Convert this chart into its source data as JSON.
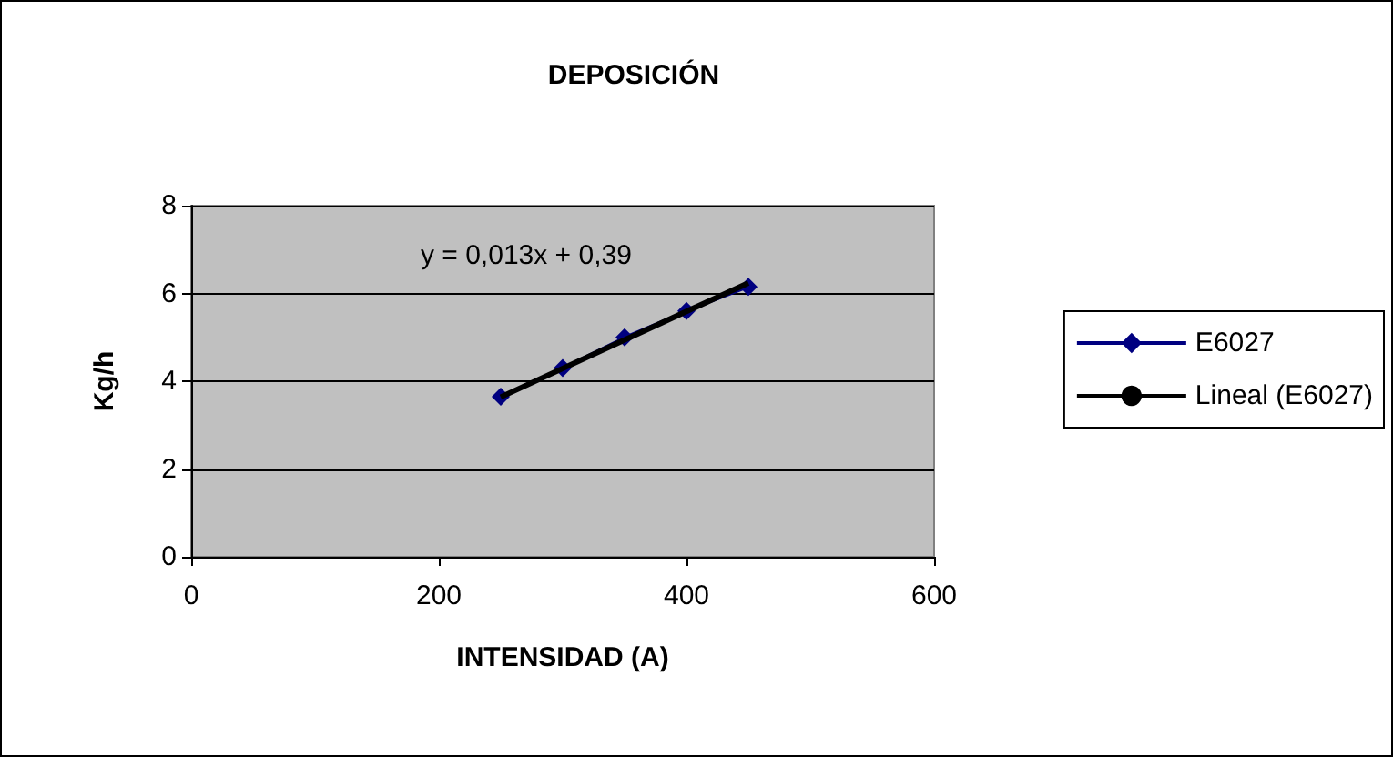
{
  "chart_data": {
    "type": "line",
    "title": "DEPOSICIÓN",
    "xlabel": "INTENSIDAD (A)",
    "ylabel": "Kg/h",
    "annotations": [
      "y = 0,013x + 0,39"
    ],
    "x": [
      250,
      300,
      350,
      400,
      450
    ],
    "series": [
      {
        "name": "E6027",
        "color": "#000080",
        "values": [
          3.65,
          4.3,
          5.0,
          5.6,
          6.15
        ],
        "marker": "diamond"
      },
      {
        "name": "Lineal (E6027)",
        "color": "#000000",
        "x": [
          250,
          450
        ],
        "values": [
          3.64,
          6.24
        ],
        "marker": "none"
      }
    ],
    "xlim": [
      0,
      600
    ],
    "xticks": [
      0,
      200,
      400,
      600
    ],
    "ylim": [
      0,
      8
    ],
    "yticks": [
      0,
      2,
      4,
      6,
      8
    ],
    "grid": "y",
    "legend": "right"
  }
}
